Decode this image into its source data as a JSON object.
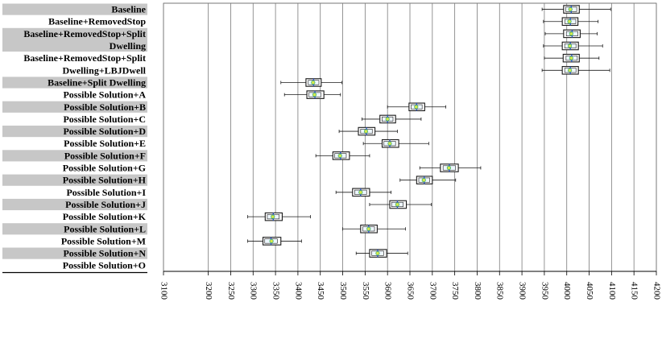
{
  "chart_data": {
    "type": "boxplot",
    "orientation": "horizontal",
    "title": "",
    "xlabel": "",
    "ylabel": "",
    "xlim": [
      3100,
      4200
    ],
    "grid": "vertical",
    "xticks": [
      3100,
      3200,
      3250,
      3300,
      3350,
      3400,
      3450,
      3500,
      3550,
      3600,
      3650,
      3700,
      3750,
      3800,
      3850,
      3900,
      3950,
      4000,
      4050,
      4100,
      4150,
      4200
    ],
    "categories": [
      {
        "label": "Baseline",
        "line2": "",
        "shaded": true,
        "rows": 1,
        "stats": {
          "min": 3945,
          "q1": 3993,
          "median": 4010,
          "mean": 4008,
          "q3": 4028,
          "max": 4098
        }
      },
      {
        "label": "Baseline+RemovedStop",
        "line2": "",
        "shaded": false,
        "rows": 1,
        "stats": {
          "min": 3948,
          "q1": 3990,
          "median": 4008,
          "mean": 4006,
          "q3": 4025,
          "max": 4070
        }
      },
      {
        "label": "Baseline+RemovedStop+Split",
        "line2": "Dwelling",
        "shaded": true,
        "rows": 2,
        "stats_a": {
          "min": 3952,
          "q1": 3993,
          "median": 4012,
          "mean": 4010,
          "q3": 4030,
          "max": 4068
        },
        "stats_b": {
          "min": 3948,
          "q1": 3990,
          "median": 4008,
          "mean": 4007,
          "q3": 4026,
          "max": 4080
        }
      },
      {
        "label": "Baseline+RemovedStop+Split",
        "line2": "Dwelling+LBJDwell",
        "shaded": false,
        "rows": 2,
        "stats_a": {
          "min": 3950,
          "q1": 3992,
          "median": 4011,
          "mean": 4010,
          "q3": 4028,
          "max": 4072
        },
        "stats_b": {
          "min": 3945,
          "q1": 3990,
          "median": 4008,
          "mean": 4007,
          "q3": 4026,
          "max": 4096
        }
      },
      {
        "label": "Baseline+Split Dwelling",
        "line2": "",
        "shaded": true,
        "rows": 1,
        "stats": {
          "min": 3362,
          "q1": 3418,
          "median": 3435,
          "mean": 3434,
          "q3": 3452,
          "max": 3498
        }
      },
      {
        "label": "Possible Solution+A",
        "line2": "",
        "shaded": false,
        "rows": 1,
        "stats": {
          "min": 3370,
          "q1": 3420,
          "median": 3438,
          "mean": 3437,
          "q3": 3458,
          "max": 3495
        }
      },
      {
        "label": "Possible Solution+B",
        "line2": "",
        "shaded": true,
        "rows": 1,
        "stats": {
          "min": 3600,
          "q1": 3648,
          "median": 3665,
          "mean": 3664,
          "q3": 3683,
          "max": 3730
        }
      },
      {
        "label": "Possible Solution+C",
        "line2": "",
        "shaded": false,
        "rows": 1,
        "stats": {
          "min": 3543,
          "q1": 3583,
          "median": 3600,
          "mean": 3600,
          "q3": 3618,
          "max": 3675
        }
      },
      {
        "label": "Possible Solution+D",
        "line2": "",
        "shaded": true,
        "rows": 1,
        "stats": {
          "min": 3492,
          "q1": 3535,
          "median": 3553,
          "mean": 3552,
          "q3": 3572,
          "max": 3622
        }
      },
      {
        "label": "Possible Solution+E",
        "line2": "",
        "shaded": false,
        "rows": 1,
        "stats": {
          "min": 3546,
          "q1": 3588,
          "median": 3605,
          "mean": 3605,
          "q3": 3625,
          "max": 3692
        }
      },
      {
        "label": "Possible Solution+F",
        "line2": "",
        "shaded": true,
        "rows": 1,
        "stats": {
          "min": 3440,
          "q1": 3478,
          "median": 3495,
          "mean": 3494,
          "q3": 3515,
          "max": 3560
        }
      },
      {
        "label": "Possible Solution+G",
        "line2": "",
        "shaded": false,
        "rows": 1,
        "stats": {
          "min": 3672,
          "q1": 3718,
          "median": 3738,
          "mean": 3737,
          "q3": 3758,
          "max": 3808
        }
      },
      {
        "label": "Possible Solution+H",
        "line2": "",
        "shaded": true,
        "rows": 1,
        "stats": {
          "min": 3628,
          "q1": 3665,
          "median": 3682,
          "mean": 3681,
          "q3": 3700,
          "max": 3752
        }
      },
      {
        "label": "Possible Solution+I",
        "line2": "",
        "shaded": false,
        "rows": 1,
        "stats": {
          "min": 3485,
          "q1": 3522,
          "median": 3540,
          "mean": 3540,
          "q3": 3560,
          "max": 3608
        }
      },
      {
        "label": "Possible Solution+J",
        "line2": "",
        "shaded": true,
        "rows": 1,
        "stats": {
          "min": 3560,
          "q1": 3605,
          "median": 3622,
          "mean": 3622,
          "q3": 3642,
          "max": 3698
        }
      },
      {
        "label": "Possible Solution+K",
        "line2": "",
        "shaded": false,
        "rows": 1,
        "stats": {
          "min": 3288,
          "q1": 3327,
          "median": 3345,
          "mean": 3344,
          "q3": 3365,
          "max": 3428
        }
      },
      {
        "label": "Possible Solution+L",
        "line2": "",
        "shaded": true,
        "rows": 1,
        "stats": {
          "min": 3500,
          "q1": 3540,
          "median": 3558,
          "mean": 3558,
          "q3": 3577,
          "max": 3640
        }
      },
      {
        "label": "Possible Solution+M",
        "line2": "",
        "shaded": false,
        "rows": 1,
        "stats": {
          "min": 3288,
          "q1": 3322,
          "median": 3340,
          "mean": 3341,
          "q3": 3362,
          "max": 3408
        }
      },
      {
        "label": "Possible Solution+N",
        "line2": "",
        "shaded": true,
        "rows": 1,
        "stats": {
          "min": 3530,
          "q1": 3560,
          "median": 3578,
          "mean": 3578,
          "q3": 3598,
          "max": 3645
        }
      },
      {
        "label": "Possible Solution+O",
        "line2": "",
        "shaded": false,
        "rows": 0
      }
    ],
    "colors": {
      "band_shade": "#c7c7c7",
      "grid_line": "#7a7a7a",
      "box_stroke": "#1a1a1a",
      "median_line": "#2a56c6",
      "mean_marker": "#d8e84a",
      "mean_ring": "#3bb37a",
      "axis_line": "#000000"
    }
  }
}
